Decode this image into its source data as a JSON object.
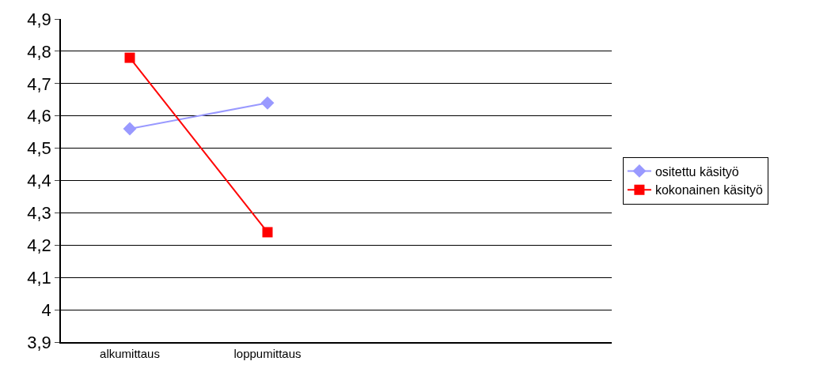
{
  "chart_data": {
    "type": "line",
    "categories": [
      "alkumittaus",
      "loppumittaus",
      null,
      null
    ],
    "series": [
      {
        "name": "ositettu käsityö",
        "color": "#9999ff",
        "marker": "diamond",
        "values": [
          4.56,
          4.64,
          null,
          null
        ]
      },
      {
        "name": "kokonainen käsityö",
        "color": "#ff0000",
        "marker": "square",
        "values": [
          4.78,
          4.24,
          null,
          null
        ]
      }
    ],
    "ylim": [
      3.9,
      4.9
    ],
    "yticks": [
      {
        "value": 3.9,
        "label": "3,9"
      },
      4,
      {
        "value": 4.1,
        "label": "4,1"
      },
      {
        "value": 4.2,
        "label": "4,2"
      },
      {
        "value": 4.3,
        "label": "4,3"
      },
      {
        "value": 4.4,
        "label": "4,4"
      },
      {
        "value": 4.5,
        "label": "4,5"
      },
      {
        "value": 4.6,
        "label": "4,6"
      },
      {
        "value": 4.7,
        "label": "4,7"
      },
      {
        "value": 4.8,
        "label": "4,8"
      },
      {
        "value": 4.9,
        "label": "4,9"
      }
    ],
    "grid": "y",
    "legend": "right",
    "line_style": "solid"
  }
}
